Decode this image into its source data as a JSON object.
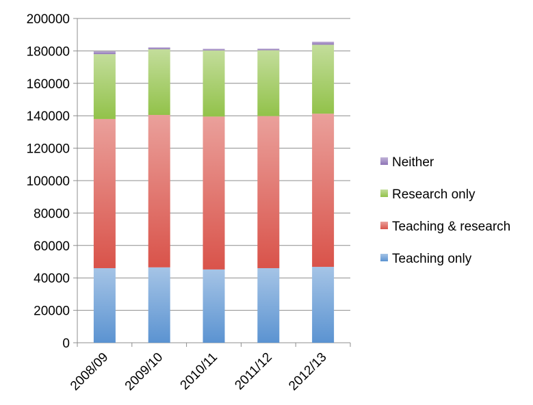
{
  "chart_data": {
    "type": "bar",
    "stacked": true,
    "categories": [
      "2008/09",
      "2009/10",
      "2010/11",
      "2011/12",
      "2012/13"
    ],
    "series": [
      {
        "name": "Teaching only",
        "values": [
          46000,
          46500,
          45200,
          46000,
          46800
        ],
        "color": "#5b93d1"
      },
      {
        "name": "Teaching & research",
        "values": [
          92000,
          94000,
          94300,
          93800,
          94500
        ],
        "color": "#d9534a"
      },
      {
        "name": "Research only",
        "values": [
          40000,
          40500,
          40800,
          40600,
          42500
        ],
        "color": "#92c24a"
      },
      {
        "name": "Neither",
        "values": [
          1800,
          1200,
          1000,
          1000,
          1900
        ],
        "color": "#8e74b6"
      }
    ],
    "y_ticks": [
      "0",
      "20000",
      "40000",
      "60000",
      "80000",
      "100000",
      "120000",
      "140000",
      "160000",
      "180000",
      "200000"
    ],
    "ylim": [
      0,
      200000
    ],
    "grid": true,
    "legend_position": "right",
    "legend_order": [
      "Neither",
      "Research only",
      "Teaching & research",
      "Teaching only"
    ]
  }
}
